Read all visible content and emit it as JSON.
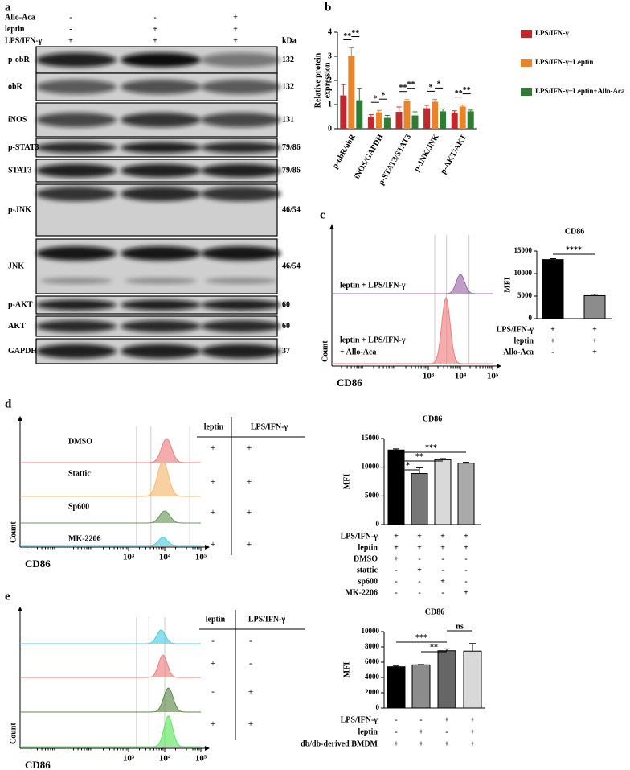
{
  "panel_labels": [
    "a",
    "b",
    "c",
    "d",
    "e"
  ],
  "blot": {
    "conditions": [
      {
        "name": "Allo-Aca",
        "signs": [
          "-",
          "-",
          "+"
        ]
      },
      {
        "name": "leptin",
        "signs": [
          "-",
          "+",
          "+"
        ]
      },
      {
        "name": "LPS/IFN-γ",
        "signs": [
          "+",
          "+",
          "+"
        ]
      }
    ],
    "unit": "kDa",
    "rows": [
      {
        "name": "p-obR",
        "kda": "132"
      },
      {
        "name": "obR",
        "kda": "132"
      },
      {
        "name": "iNOS",
        "kda": "131"
      },
      {
        "name": "p-STAT3",
        "kda": "79/86"
      },
      {
        "name": "STAT3",
        "kda": "79/86"
      },
      {
        "name": "p-JNK",
        "kda": "46/54"
      },
      {
        "name": "JNK",
        "kda": "46/54"
      },
      {
        "name": "p-AKT",
        "kda": "60"
      },
      {
        "name": "AKT",
        "kda": "60"
      },
      {
        "name": "GAPDH",
        "kda": "37"
      }
    ]
  },
  "flow_panels": [
    {
      "x_label": "CD86",
      "y_label": "Count",
      "log_scale": true,
      "xlim": [
        1,
        100000
      ],
      "xticks": [
        {
          "value": 1000,
          "label": "10³"
        },
        {
          "value": 10000,
          "label": "10⁴"
        },
        {
          "value": 100000,
          "label": "10⁵"
        }
      ],
      "samples": [
        {
          "label_lines": [
            "leptin + LPS/IFN-γ"
          ],
          "color": "#9b6aa8"
        },
        {
          "label_lines": [
            "leptin + LPS/IFN-γ",
            "+ Allo-Aca"
          ],
          "color": "#f07f7f"
        }
      ]
    },
    {
      "x_label": "CD86",
      "y_label": "Count",
      "log_scale": true,
      "xlim": [
        1,
        100000
      ],
      "xticks": [
        {
          "value": 1000,
          "label": "10³"
        },
        {
          "value": 10000,
          "label": "10⁴"
        },
        {
          "value": 100000,
          "label": "10⁵"
        }
      ],
      "samples": [
        {
          "label_lines": [
            "DMSO"
          ],
          "color": "#f07f7f"
        },
        {
          "label_lines": [
            "Stattic"
          ],
          "color": "#f5b971"
        },
        {
          "label_lines": [
            "Sp600"
          ],
          "color": "#6a9a5a"
        },
        {
          "label_lines": [
            "MK-2206"
          ],
          "color": "#4dd0e1"
        }
      ],
      "table": {
        "headers": [
          "leptin",
          "LPS/IFN-γ"
        ],
        "rows": [
          [
            "+",
            "+"
          ],
          [
            "+",
            "+"
          ],
          [
            "+",
            "+"
          ],
          [
            "+",
            "+"
          ]
        ]
      }
    },
    {
      "x_label": "CD86",
      "y_label": "Count",
      "log_scale": true,
      "xlim": [
        1,
        100000
      ],
      "xticks": [
        {
          "value": 1000,
          "label": "10³"
        },
        {
          "value": 10000,
          "label": "10⁴"
        },
        {
          "value": 100000,
          "label": "10⁵"
        }
      ],
      "samples": [
        {
          "color": "#4dd0e1"
        },
        {
          "color": "#f07f7f"
        },
        {
          "color": "#5d8a4a"
        },
        {
          "color": "#5ee65e"
        }
      ],
      "table": {
        "headers": [
          "leptin",
          "LPS/IFN-γ"
        ],
        "rows": [
          [
            "-",
            "-"
          ],
          [
            "+",
            "-"
          ],
          [
            "-",
            "+"
          ],
          [
            "+",
            "+"
          ]
        ]
      }
    }
  ],
  "chart_data": [
    {
      "type": "grouped_bar",
      "y_label": [
        "Relative protein",
        "expression"
      ],
      "categories": [
        "p-obR/obR",
        "iNOS/GAPDH",
        "p-STAT3/STAT3",
        "p-JNK/JNK",
        "p-AKT/AKT"
      ],
      "ylim": [
        0,
        4
      ],
      "yticks": [
        0,
        1,
        2,
        3,
        4
      ],
      "series": [
        {
          "name": "LPS/IFN-γ",
          "color": "#c0282d",
          "values": [
            1.38,
            0.5,
            0.7,
            0.85,
            0.67
          ],
          "errors": [
            0.45,
            0.08,
            0.2,
            0.12,
            0.07
          ]
        },
        {
          "name": "LPS/IFN-γ+Leptin",
          "color": "#e8842a",
          "values": [
            3.0,
            0.68,
            1.15,
            1.12,
            0.92
          ],
          "errors": [
            0.35,
            0.08,
            0.06,
            0.1,
            0.06
          ]
        },
        {
          "name": "LPS/IFN-γ+Leptin+Allo-Aca",
          "color": "#2e7d32",
          "values": [
            1.18,
            0.45,
            0.55,
            0.72,
            0.72
          ],
          "errors": [
            0.5,
            0.1,
            0.15,
            0.1,
            0.05
          ]
        }
      ],
      "significance": [
        [
          "**",
          "**"
        ],
        [
          "*",
          "*"
        ],
        [
          "**",
          "**"
        ],
        [
          "*",
          "*"
        ],
        [
          "**",
          "**"
        ]
      ]
    },
    {
      "type": "bar",
      "title": "CD86",
      "y_label": "MFI",
      "ylim": [
        0,
        15000
      ],
      "yticks": [
        0,
        5000,
        10000,
        15000
      ],
      "values": [
        13100,
        5100
      ],
      "errors": [
        200,
        300
      ],
      "colors": [
        "#000000",
        "#8c8c8c"
      ],
      "significance": [
        "****"
      ],
      "conditions": [
        {
          "name": "LPS/IFN-γ",
          "signs": [
            "+",
            "+"
          ]
        },
        {
          "name": "leptin",
          "signs": [
            "+",
            "+"
          ]
        },
        {
          "name": "Allo-Aca",
          "signs": [
            "-",
            "+"
          ]
        }
      ]
    },
    {
      "type": "bar",
      "title": "CD86",
      "y_label": "MFI",
      "ylim": [
        0,
        15000
      ],
      "yticks": [
        0,
        5000,
        10000,
        15000
      ],
      "values": [
        13000,
        8900,
        11300,
        10700
      ],
      "errors": [
        200,
        1000,
        200,
        150
      ],
      "colors": [
        "#000000",
        "#777777",
        "#d9d9d9",
        "#aaaaaa"
      ],
      "significance": [
        "*",
        "**",
        "***"
      ],
      "conditions": [
        {
          "name": "LPS/IFN-γ",
          "signs": [
            "+",
            "+",
            "+",
            "+"
          ]
        },
        {
          "name": "leptin",
          "signs": [
            "+",
            "+",
            "+",
            "+"
          ]
        },
        {
          "name": "DMSO",
          "signs": [
            "+",
            "-",
            "-",
            "-"
          ]
        },
        {
          "name": "stattic",
          "signs": [
            "-",
            "+",
            "-",
            "-"
          ]
        },
        {
          "name": "sp600",
          "signs": [
            "-",
            "-",
            "+",
            "-"
          ]
        },
        {
          "name": "MK-2206",
          "signs": [
            "-",
            "-",
            "-",
            "+"
          ]
        }
      ]
    },
    {
      "type": "bar",
      "title": "CD86",
      "y_label": "MFI",
      "ylim": [
        0,
        10000
      ],
      "yticks": [
        0,
        2000,
        4000,
        6000,
        8000,
        10000
      ],
      "values": [
        5400,
        5650,
        7500,
        7450
      ],
      "errors": [
        100,
        50,
        250,
        1000
      ],
      "colors": [
        "#000000",
        "#8c8c8c",
        "#666666",
        "#d9d9d9"
      ],
      "significance": [
        "***",
        "**",
        "ns"
      ],
      "conditions": [
        {
          "name": "LPS/IFN-γ",
          "signs": [
            "-",
            "-",
            "+",
            "+"
          ]
        },
        {
          "name": "leptin",
          "signs": [
            "-",
            "+",
            "-",
            "+"
          ]
        },
        {
          "name": "db/db-derived BMDM",
          "signs": [
            "+",
            "+",
            "+",
            "+"
          ]
        }
      ]
    }
  ]
}
